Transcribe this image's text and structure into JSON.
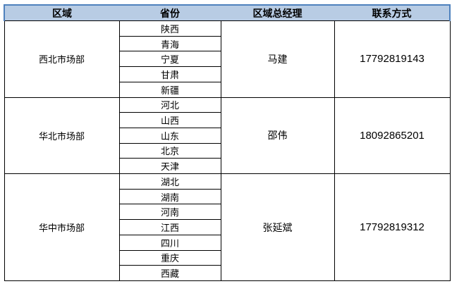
{
  "table": {
    "headers": [
      "区域",
      "省份",
      "区域总经理",
      "联系方式"
    ],
    "groups": [
      {
        "region": "西北市场部",
        "provinces": [
          "陕西",
          "青海",
          "宁夏",
          "甘肃",
          "新疆"
        ],
        "manager": "马建",
        "phone": "17792819143"
      },
      {
        "region": "华北市场部",
        "provinces": [
          "河北",
          "山西",
          "山东",
          "北京",
          "天津"
        ],
        "manager": "邵伟",
        "phone": "18092865201"
      },
      {
        "region": "华中市场部",
        "provinces": [
          "湖北",
          "湖南",
          "河南",
          "江西",
          "四川",
          "重庆",
          "西藏"
        ],
        "manager": "张延斌",
        "phone": "17792819312"
      }
    ],
    "colors": {
      "header_bg": "#B8CCE4",
      "header_border": "#4E81BD",
      "grid_border": "#000000",
      "text": "#000000"
    }
  }
}
